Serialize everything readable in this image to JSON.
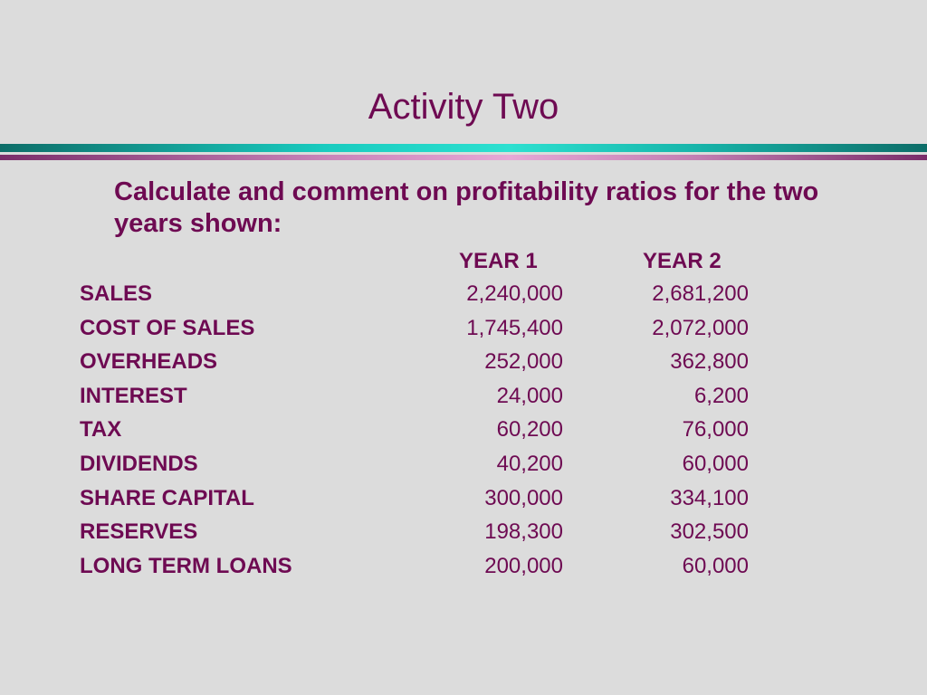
{
  "slide": {
    "title": "Activity Two",
    "instruction": "Calculate and comment on profitability ratios for the two years shown:"
  },
  "table": {
    "headers": {
      "year1": "YEAR 1",
      "year2": "YEAR 2"
    },
    "rows": [
      {
        "label": "SALES",
        "year1": "2,240,000",
        "year2": "2,681,200"
      },
      {
        "label": "COST OF SALES",
        "year1": "1,745,400",
        "year2": "2,072,000"
      },
      {
        "label": "OVERHEADS",
        "year1": "252,000",
        "year2": "362,800"
      },
      {
        "label": "INTEREST",
        "year1": "24,000",
        "year2": "6,200"
      },
      {
        "label": "TAX",
        "year1": "60,200",
        "year2": "76,000"
      },
      {
        "label": "DIVIDENDS",
        "year1": "40,200",
        "year2": "60,000"
      },
      {
        "label": "SHARE CAPITAL",
        "year1": "300,000",
        "year2": "334,100"
      },
      {
        "label": "RESERVES",
        "year1": "198,300",
        "year2": "302,500"
      },
      {
        "label": "LONG TERM LOANS",
        "year1": "200,000",
        "year2": "60,000"
      }
    ]
  },
  "colors": {
    "background": "#dcdcdc",
    "text": "#6e0a52",
    "rule_teal": "#19cbbf",
    "rule_mauve": "#c883b9"
  }
}
